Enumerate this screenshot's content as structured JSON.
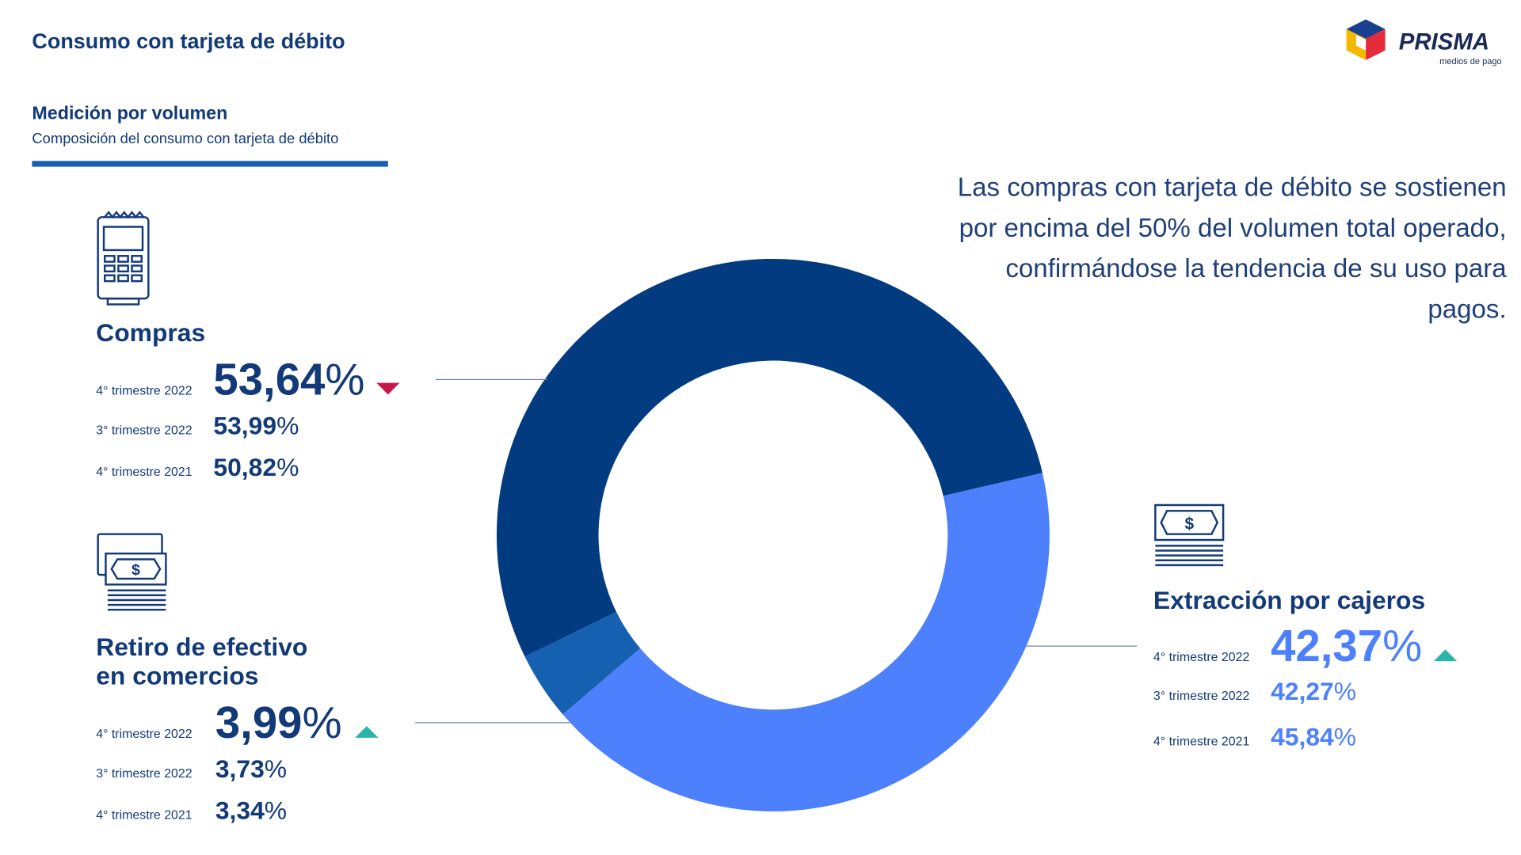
{
  "header": {
    "title": "Consumo con tarjeta de débito",
    "logo_text": "PRISMA",
    "logo_sub": "medios de pago"
  },
  "section": {
    "heading": "Medición por volumen",
    "description": "Composición del consumo con tarjeta de débito"
  },
  "headline": "Las compras con tarjeta de débito se sostienen por encima del 50% del volumen total operado, confirmándose la tendencia de su uso para pagos.",
  "colors": {
    "compras": "#033b80",
    "retiro": "#1560b0",
    "extraccion": "#4d80fc",
    "down": "#c8184a",
    "up": "#2bb5a8",
    "text": "#123a78"
  },
  "categories": [
    {
      "name": "Compras",
      "icon": "pos-terminal-icon",
      "trend": "down",
      "rows": [
        {
          "period": "4° trimestre 2022",
          "value": "53,64",
          "unit": "%"
        },
        {
          "period": "3° trimestre 2022",
          "value": "53,99",
          "unit": "%"
        },
        {
          "period": "4° trimestre 2021",
          "value": "50,82",
          "unit": "%"
        }
      ]
    },
    {
      "name_line1": "Retiro de efectivo",
      "name_line2": "en comercios",
      "icon": "cash-icon",
      "trend": "up",
      "rows": [
        {
          "period": "4° trimestre 2022",
          "value": "3,99",
          "unit": "%"
        },
        {
          "period": "3° trimestre 2022",
          "value": "3,73",
          "unit": "%"
        },
        {
          "period": "4° trimestre 2021",
          "value": "3,34",
          "unit": "%"
        }
      ]
    },
    {
      "name": "Extracción por cajeros",
      "icon": "banknote-icon",
      "trend": "up",
      "rows": [
        {
          "period": "4° trimestre 2022",
          "value": "42,37",
          "unit": "%"
        },
        {
          "period": "3° trimestre 2022",
          "value": "42,27",
          "unit": "%"
        },
        {
          "period": "4° trimestre 2021",
          "value": "45,84",
          "unit": "%"
        }
      ]
    }
  ],
  "chart_data": {
    "type": "pie",
    "donut": true,
    "categories": [
      "Compras",
      "Retiro de efectivo en comercios",
      "Extracción por cajeros"
    ],
    "values": [
      53.64,
      3.99,
      42.37
    ],
    "colors": [
      "#033b80",
      "#1560b0",
      "#4d80fc"
    ]
  }
}
